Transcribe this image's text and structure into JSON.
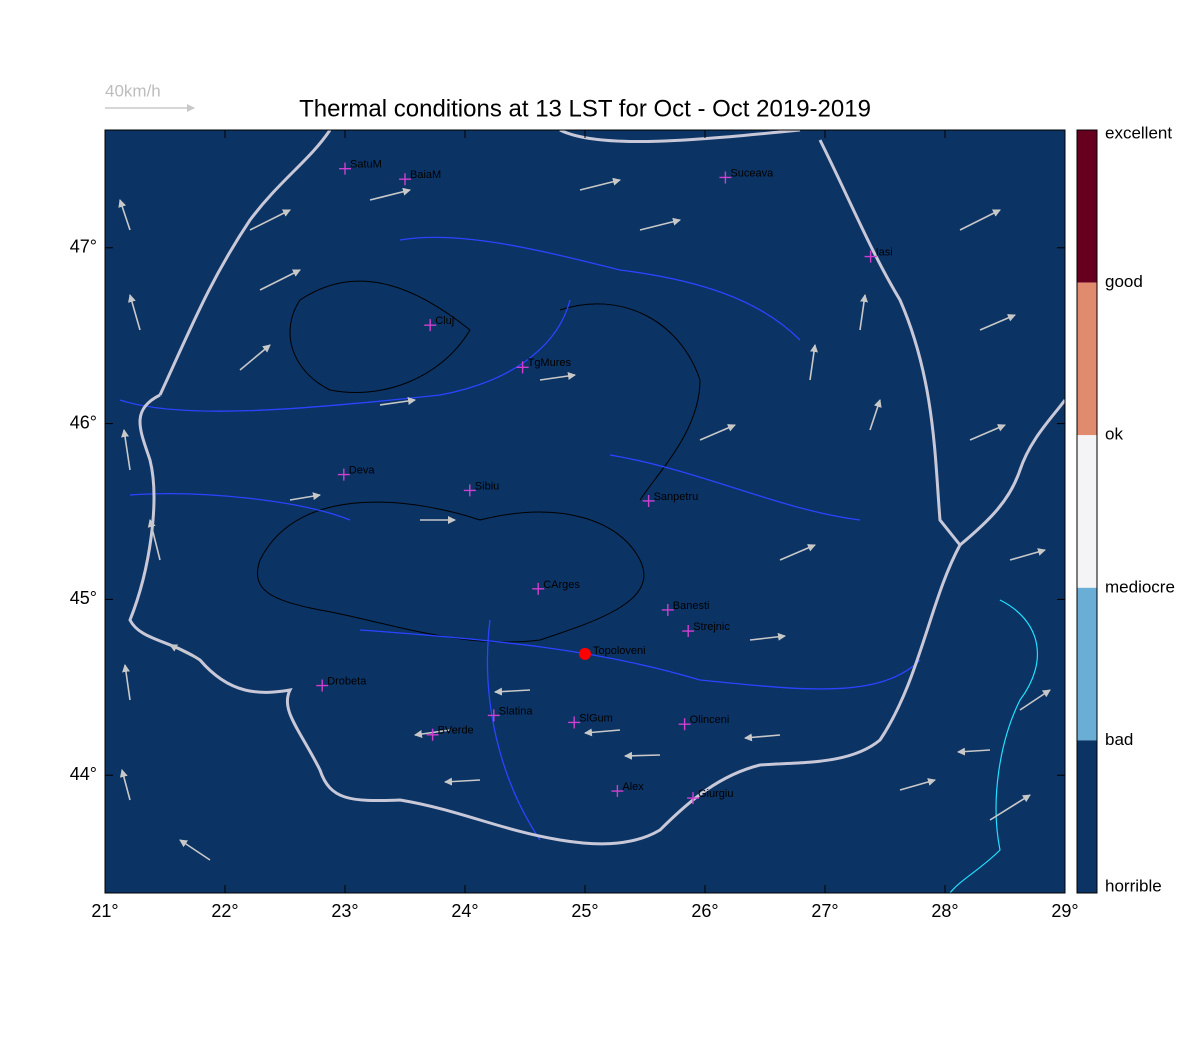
{
  "title": "Thermal conditions at 13 LST for Oct - Oct  2019-2019",
  "wind_legend": "40km/h",
  "map": {
    "xlim": [
      21,
      29
    ],
    "ylim": [
      43.33,
      47.67
    ],
    "background": "#0b3363",
    "xticks": [
      {
        "value": 21,
        "label": "21°"
      },
      {
        "value": 22,
        "label": "22°"
      },
      {
        "value": 23,
        "label": "23°"
      },
      {
        "value": 24,
        "label": "24°"
      },
      {
        "value": 25,
        "label": "25°"
      },
      {
        "value": 26,
        "label": "26°"
      },
      {
        "value": 27,
        "label": "27°"
      },
      {
        "value": 28,
        "label": "28°"
      },
      {
        "value": 29,
        "label": "29°"
      }
    ],
    "yticks": [
      {
        "value": 44,
        "label": "44°"
      },
      {
        "value": 45,
        "label": "45°"
      },
      {
        "value": 46,
        "label": "46°"
      },
      {
        "value": 47,
        "label": "47°"
      }
    ],
    "cities": [
      {
        "name": "SatuM",
        "lon": 23.0,
        "lat": 47.45
      },
      {
        "name": "BaiaM",
        "lon": 23.5,
        "lat": 47.39
      },
      {
        "name": "Suceava",
        "lon": 26.17,
        "lat": 47.4
      },
      {
        "name": "Iasi",
        "lon": 27.38,
        "lat": 46.95
      },
      {
        "name": "Cluj",
        "lon": 23.71,
        "lat": 46.56
      },
      {
        "name": "TgMures",
        "lon": 24.48,
        "lat": 46.32
      },
      {
        "name": "Deva",
        "lon": 22.99,
        "lat": 45.71
      },
      {
        "name": "Sibiu",
        "lon": 24.04,
        "lat": 45.62
      },
      {
        "name": "Sanpetru",
        "lon": 25.53,
        "lat": 45.56
      },
      {
        "name": "CArges",
        "lon": 24.61,
        "lat": 45.06
      },
      {
        "name": "Banesti",
        "lon": 25.69,
        "lat": 44.94
      },
      {
        "name": "Strejnic",
        "lon": 25.86,
        "lat": 44.82
      },
      {
        "name": "Drobeta",
        "lon": 22.81,
        "lat": 44.51
      },
      {
        "name": "Slatina",
        "lon": 24.24,
        "lat": 44.34
      },
      {
        "name": "SlGum",
        "lon": 24.91,
        "lat": 44.3
      },
      {
        "name": "Olinceni",
        "lon": 25.83,
        "lat": 44.29
      },
      {
        "name": "BVerde",
        "lon": 23.73,
        "lat": 44.23
      },
      {
        "name": "Alex",
        "lon": 25.27,
        "lat": 43.91
      },
      {
        "name": "Giurgiu",
        "lon": 25.9,
        "lat": 43.87
      }
    ],
    "site": {
      "name": "Topoloveni",
      "lon": 25.0,
      "lat": 44.69
    }
  },
  "colorbar": {
    "labels": [
      "excellent",
      "good",
      "ok",
      "mediocre",
      "bad",
      "horrible"
    ],
    "colors": [
      "#67001f",
      "#e08a6e",
      "#f4f4f6",
      "#6aaed6",
      "#0b3363"
    ]
  }
}
